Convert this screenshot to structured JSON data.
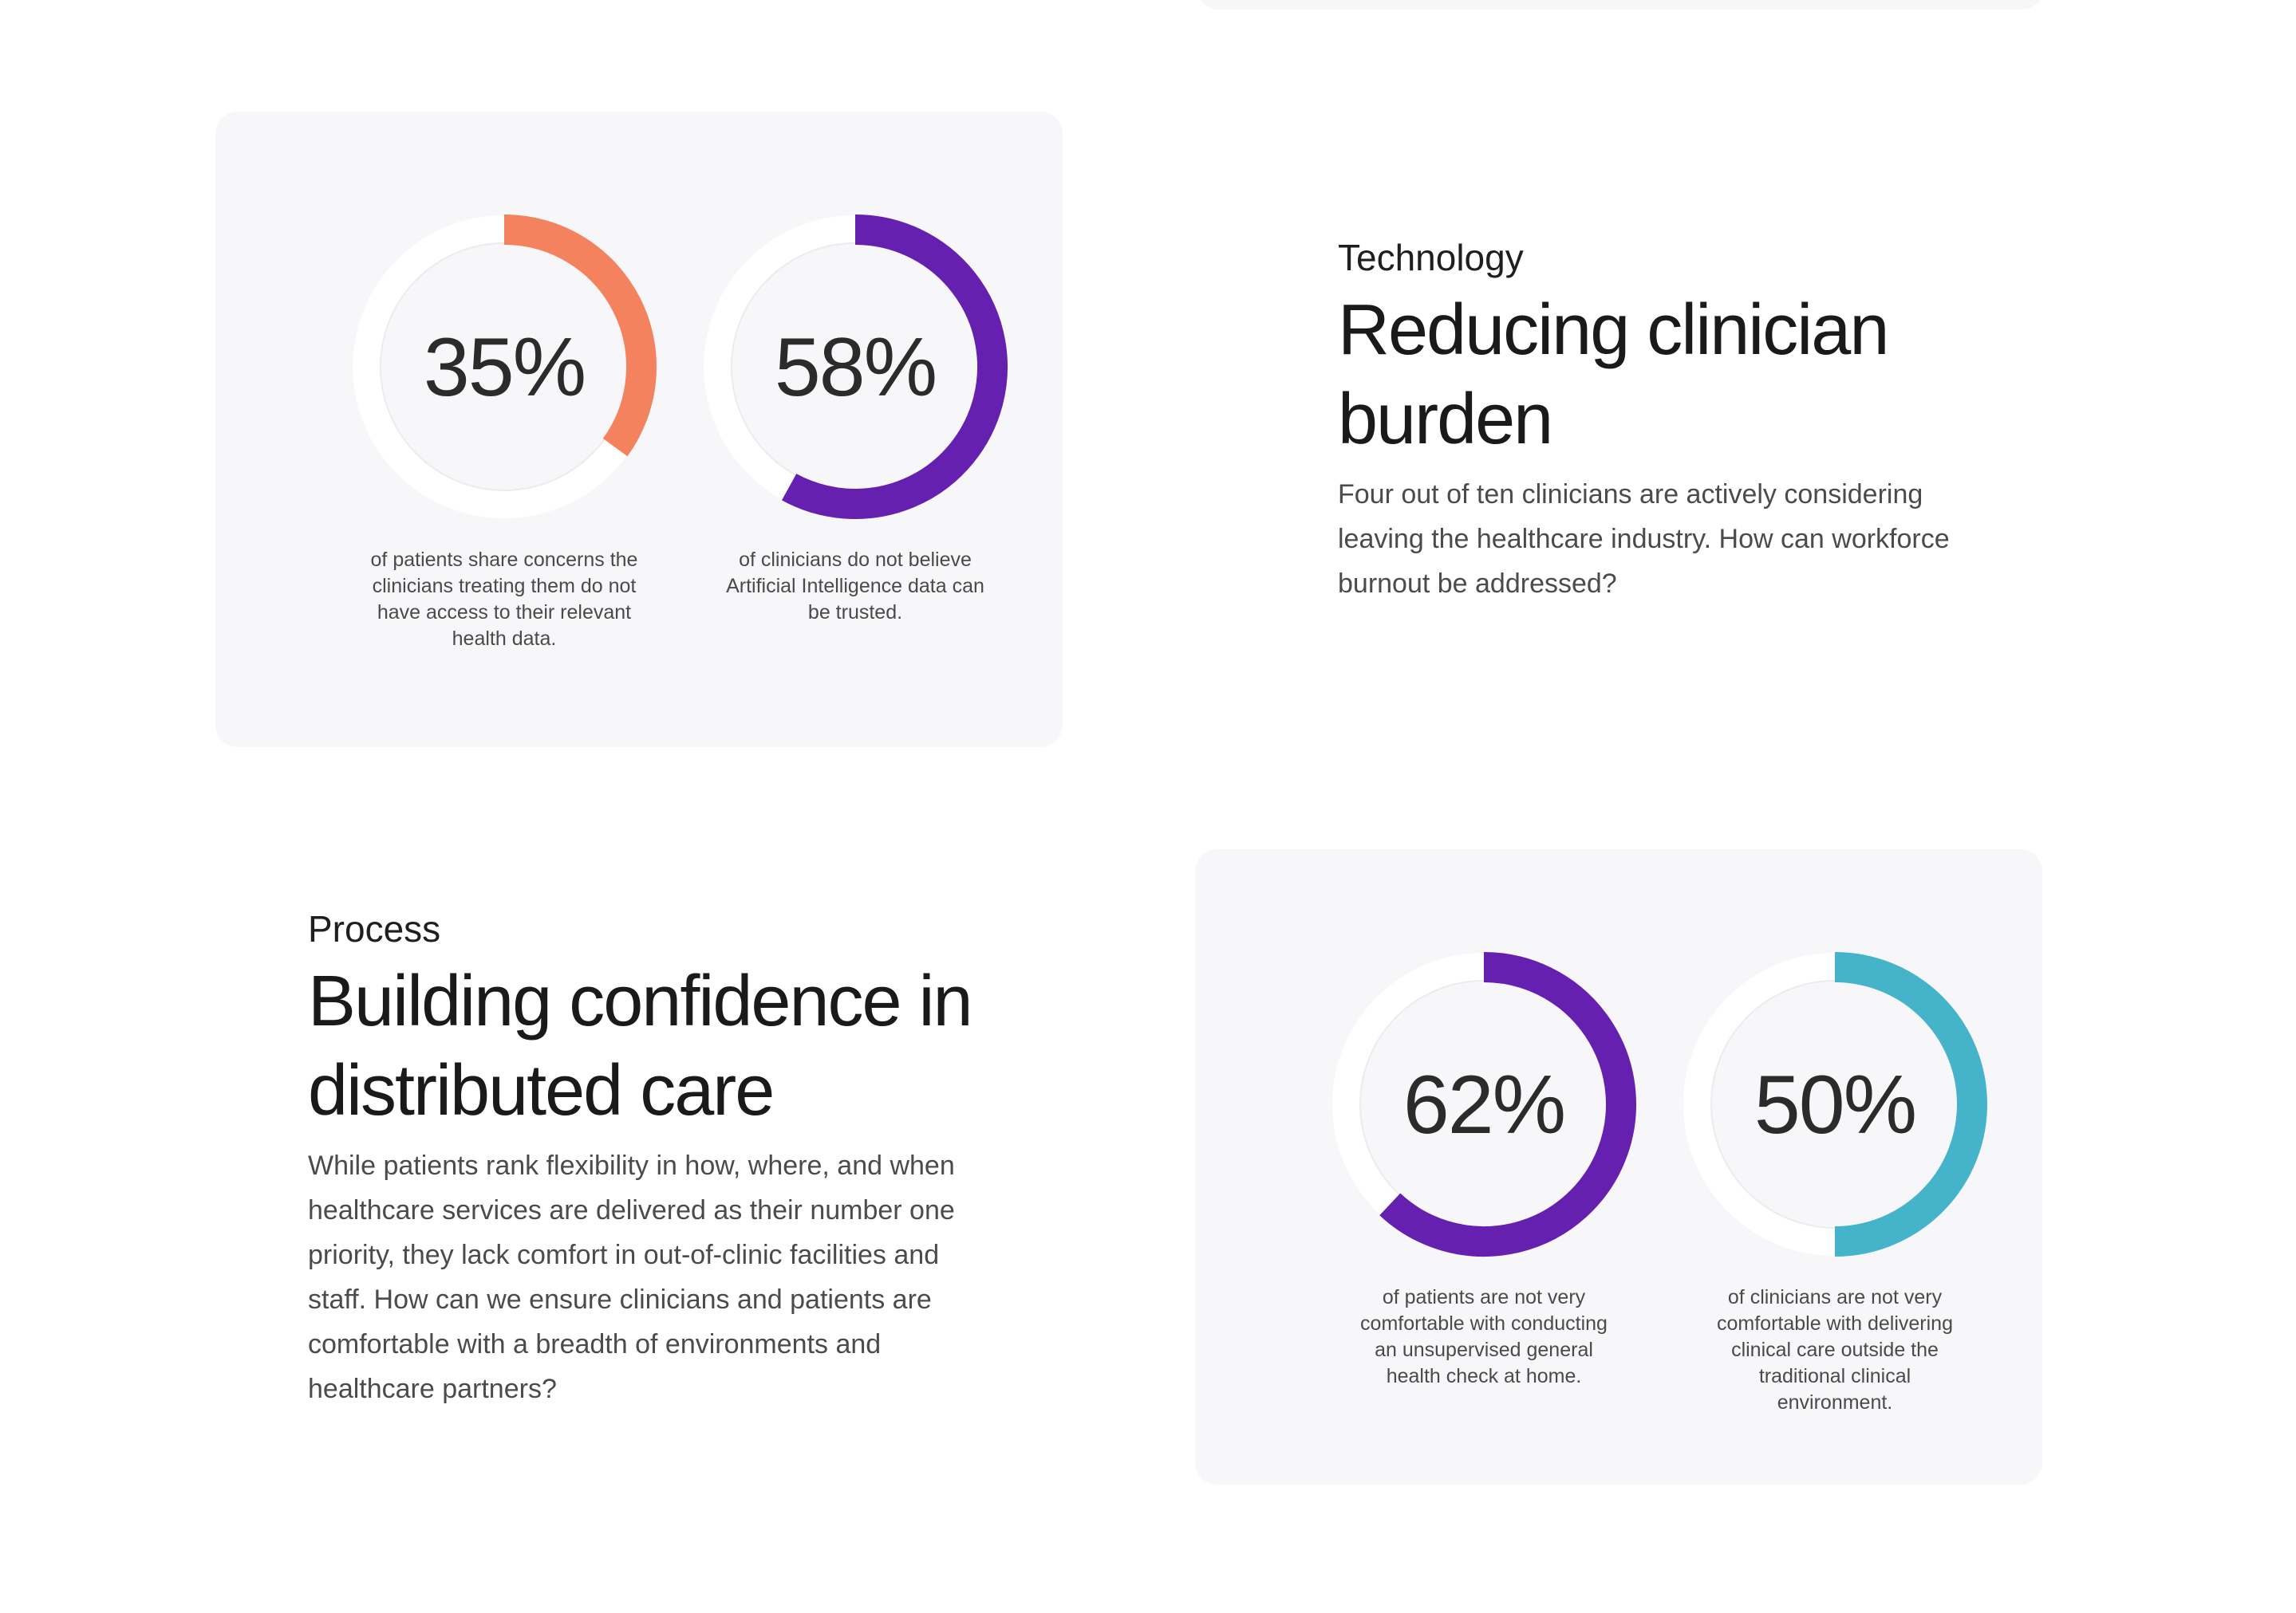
{
  "sections": [
    {
      "eyebrow": "Technology",
      "headline_line1": "Reducing clinician",
      "headline_line2": "burden",
      "body": "Four out of ten clinicians are actively considering leaving the healthcare industry. How can workforce burnout be addressed?",
      "stats": [
        {
          "value": 35,
          "label": "35%",
          "color": "#f4825e",
          "caption": "of patients share concerns the clinicians treating them do not have access to their relevant health data."
        },
        {
          "value": 58,
          "label": "58%",
          "color": "#6520b0",
          "caption": "of clinicians do not believe Artificial Intelligence data can be trusted."
        }
      ]
    },
    {
      "eyebrow": "Process",
      "headline_line1": "Building confidence in",
      "headline_line2": "distributed care",
      "body": "While patients rank flexibility in how, where, and when healthcare services are delivered as their number one priority, they lack comfort in out-of-clinic facilities and staff. How can we ensure clinicians and patients are comfortable with a breadth of environments and healthcare partners?",
      "stats": [
        {
          "value": 62,
          "label": "62%",
          "color": "#6520b0",
          "caption": "of patients are not very comfortable with conducting an unsupervised general health check at home."
        },
        {
          "value": 50,
          "label": "50%",
          "color": "#45b3c9",
          "caption": "of clinicians are not very comfortable with delivering clinical care outside the traditional clinical environment."
        }
      ]
    }
  ]
}
